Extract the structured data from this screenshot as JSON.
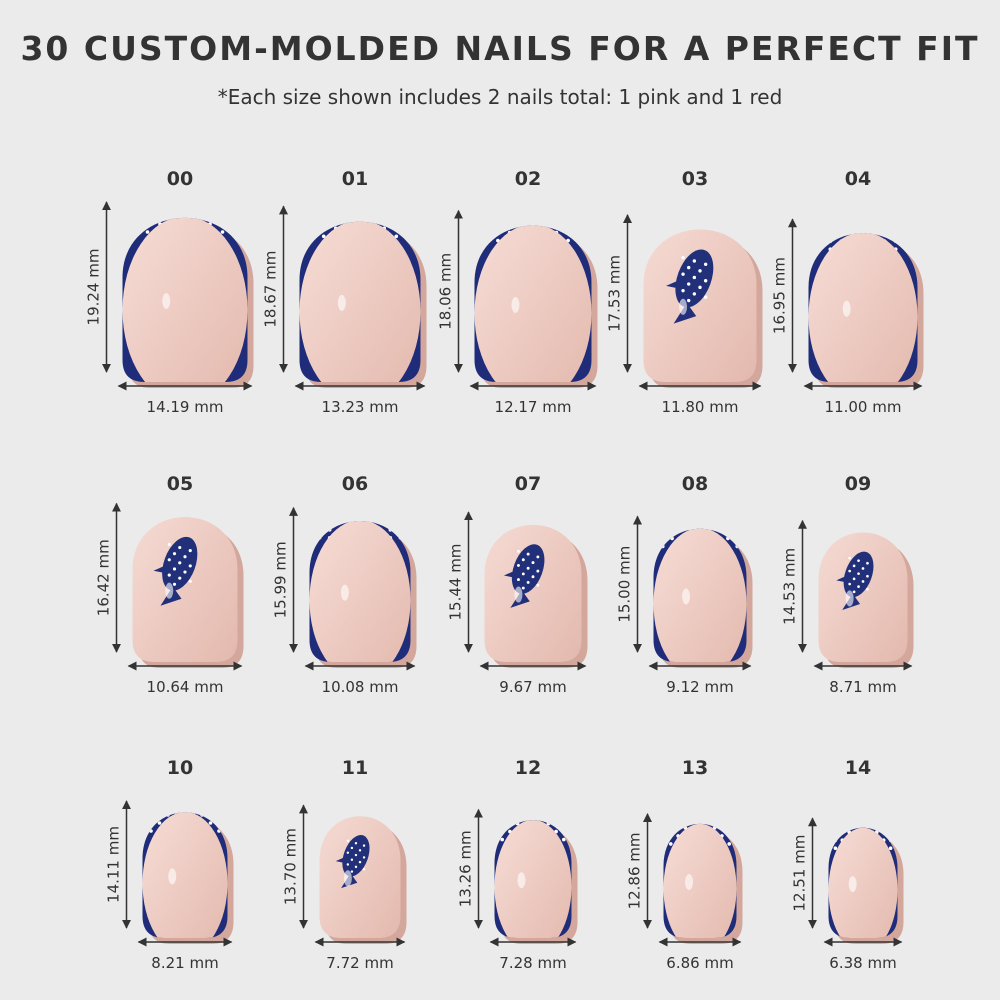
{
  "header": {
    "title": "30 CUSTOM-MOLDED NAILS FOR A PERFECT FIT",
    "subtitle": "*Each size shown includes 2 nails total: 1 pink and 1 red"
  },
  "nails": [
    {
      "label": "00",
      "height": "19.24 mm",
      "width": "14.19 mm"
    },
    {
      "label": "01",
      "height": "18.67 mm",
      "width": "13.23 mm"
    },
    {
      "label": "02",
      "height": "18.06 mm",
      "width": "12.17 mm"
    },
    {
      "label": "03",
      "height": "17.53 mm",
      "width": "11.80 mm"
    },
    {
      "label": "04",
      "height": "16.95 mm",
      "width": "11.00 mm"
    },
    {
      "label": "05",
      "height": "16.42 mm",
      "width": "10.64 mm"
    },
    {
      "label": "06",
      "height": "15.99 mm",
      "width": "10.08 mm"
    },
    {
      "label": "07",
      "height": "15.44 mm",
      "width": "9.67 mm"
    },
    {
      "label": "08",
      "height": "15.00 mm",
      "width": "9.12 mm"
    },
    {
      "label": "09",
      "height": "14.53 mm",
      "width": "8.71 mm"
    },
    {
      "label": "10",
      "height": "14.11 mm",
      "width": "8.21 mm"
    },
    {
      "label": "11",
      "height": "13.70 mm",
      "width": "7.72 mm"
    },
    {
      "label": "12",
      "height": "13.26 mm",
      "width": "7.28 mm"
    },
    {
      "label": "13",
      "height": "12.86 mm",
      "width": "6.86 mm"
    },
    {
      "label": "14",
      "height": "12.51 mm",
      "width": "6.38 mm"
    }
  ]
}
